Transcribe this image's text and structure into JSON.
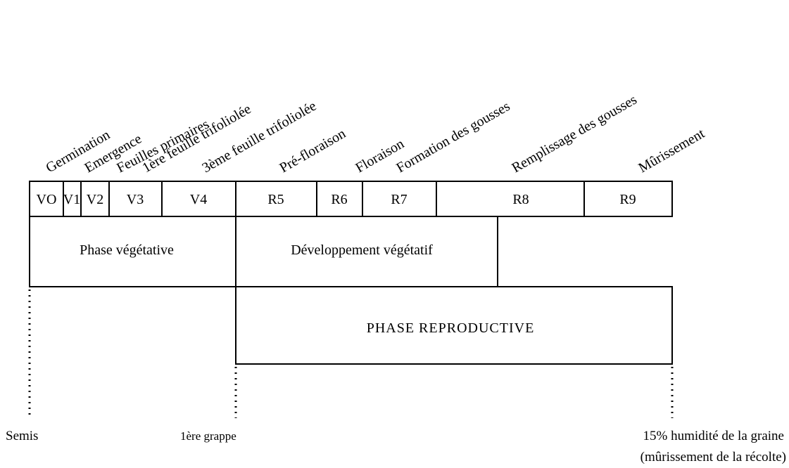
{
  "stage_labels": [
    "Germination",
    "Emergence",
    "Feuilles primaires",
    "1ère feuille trifoliolée",
    "3ème feuille trifoliolée",
    "Pré-floraison",
    "Floraison",
    "Formation des gousses",
    "Remplissage des gousses",
    "Mûrissement"
  ],
  "stage_codes": [
    "VO",
    "V1",
    "V2",
    "V3",
    "V4",
    "R5",
    "R6",
    "R7",
    "R8",
    "R9"
  ],
  "phases": {
    "vegetative": "Phase végétative",
    "development": "Développement végétatif",
    "reproductive": "PHASE REPRODUCTIVE"
  },
  "milestones": {
    "sowing": "Semis",
    "first_cluster": "1ère grappe",
    "maturity": [
      "15% humidité de la graine",
      "(mûrissement de la récolte)"
    ]
  }
}
